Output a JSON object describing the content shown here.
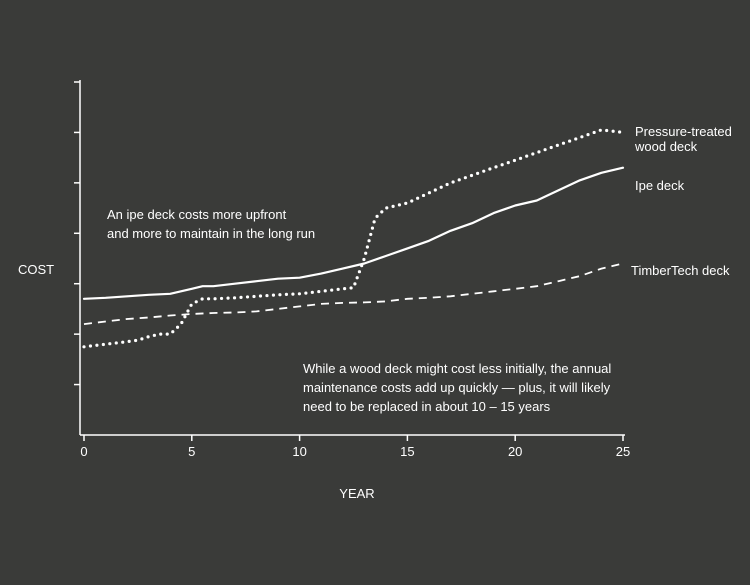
{
  "chart_data": {
    "type": "line",
    "xlabel": "YEAR",
    "ylabel": "COST",
    "xlim": [
      0,
      25
    ],
    "ylim": [
      0,
      7
    ],
    "x_ticks": [
      0,
      5,
      10,
      15,
      20,
      25
    ],
    "y_tick_count": 7,
    "y_tick_labels_shown": false,
    "grid": false,
    "series": [
      {
        "name": "Pressure-treated wood deck",
        "line_style": "dotted",
        "x": [
          0,
          1,
          2,
          2.5,
          3,
          3.5,
          4,
          4.5,
          5,
          5.5,
          6,
          7,
          8,
          9,
          10,
          11,
          12,
          12.5,
          13,
          13.5,
          14,
          15,
          16,
          17,
          18,
          19,
          20,
          21,
          22,
          23,
          24,
          25
        ],
        "y": [
          1.75,
          1.8,
          1.85,
          1.88,
          1.95,
          2.0,
          2.0,
          2.2,
          2.6,
          2.7,
          2.7,
          2.72,
          2.75,
          2.78,
          2.8,
          2.85,
          2.9,
          2.92,
          3.5,
          4.3,
          4.5,
          4.6,
          4.8,
          5.0,
          5.15,
          5.3,
          5.45,
          5.6,
          5.75,
          5.9,
          6.05,
          6.0
        ]
      },
      {
        "name": "Ipe deck",
        "line_style": "solid",
        "x": [
          0,
          1,
          2,
          3,
          4,
          5,
          5.5,
          6,
          7,
          8,
          9,
          10,
          11,
          12,
          13,
          14,
          15,
          16,
          17,
          18,
          19,
          20,
          21,
          22,
          23,
          24,
          25
        ],
        "y": [
          2.7,
          2.72,
          2.75,
          2.78,
          2.8,
          2.9,
          2.95,
          2.95,
          3.0,
          3.05,
          3.1,
          3.12,
          3.2,
          3.3,
          3.4,
          3.55,
          3.7,
          3.85,
          4.05,
          4.2,
          4.4,
          4.55,
          4.65,
          4.85,
          5.05,
          5.2,
          5.3
        ]
      },
      {
        "name": "TimberTech deck",
        "line_style": "dashed",
        "x": [
          0,
          1,
          2,
          3,
          4,
          5,
          6,
          7,
          8,
          9,
          10,
          11,
          12,
          13,
          14,
          15,
          16,
          17,
          18,
          19,
          20,
          21,
          22,
          23,
          24,
          25
        ],
        "y": [
          2.2,
          2.25,
          2.3,
          2.33,
          2.37,
          2.4,
          2.42,
          2.43,
          2.45,
          2.5,
          2.55,
          2.6,
          2.62,
          2.63,
          2.65,
          2.7,
          2.72,
          2.75,
          2.8,
          2.85,
          2.9,
          2.95,
          3.05,
          3.15,
          3.3,
          3.4
        ]
      }
    ],
    "series_labels": [
      {
        "lines": [
          "Pressure-treated",
          "wood deck"
        ]
      },
      {
        "lines": [
          "Ipe deck"
        ]
      },
      {
        "lines": [
          "TimberTech deck"
        ]
      }
    ],
    "annotations": [
      {
        "lines": [
          "An ipe deck costs more upfront",
          "and more to maintain in the long run"
        ]
      },
      {
        "lines": [
          "While a wood deck might cost less initially, the annual",
          "maintenance costs add up quickly — plus, it will likely",
          "need to be replaced in about 10 – 15 years"
        ]
      }
    ],
    "colors": {
      "background": "#3a3b39",
      "foreground": "#ffffff"
    }
  }
}
